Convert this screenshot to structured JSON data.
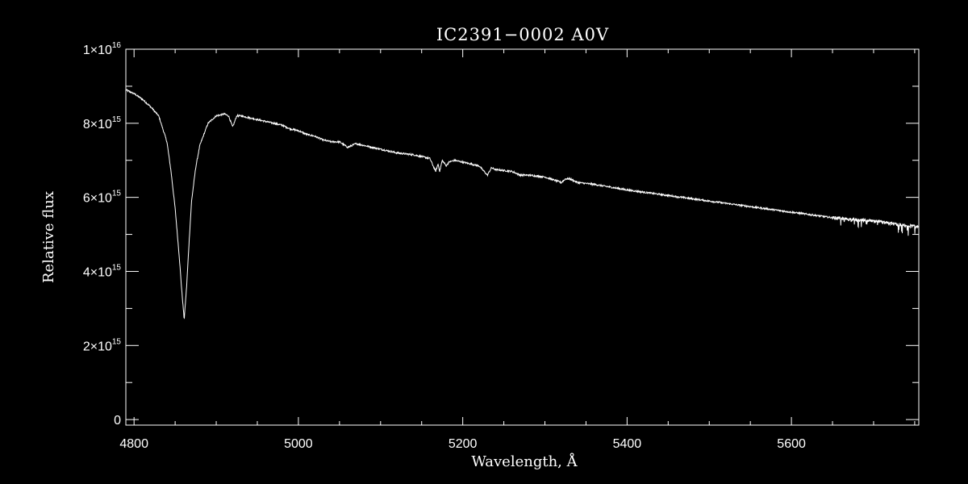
{
  "chart_data": {
    "type": "line",
    "title": "IC2391−0002  A0V",
    "xlabel": "Wavelength, Å",
    "ylabel": "Relative flux",
    "xlim": [
      4790,
      5755
    ],
    "ylim": [
      -150000000000000.0,
      1e+16
    ],
    "xticks": [
      {
        "value": 4800,
        "label": "4800"
      },
      {
        "value": 5000,
        "label": "5000"
      },
      {
        "value": 5200,
        "label": "5200"
      },
      {
        "value": 5400,
        "label": "5400"
      },
      {
        "value": 5600,
        "label": "5600"
      }
    ],
    "yticks": [
      {
        "value": 0,
        "mantissa": "0",
        "exponent": ""
      },
      {
        "value": 2000000000000000.0,
        "mantissa": "2×10",
        "exponent": "15"
      },
      {
        "value": 4000000000000000.0,
        "mantissa": "4×10",
        "exponent": "15"
      },
      {
        "value": 6000000000000000.0,
        "mantissa": "6×10",
        "exponent": "15"
      },
      {
        "value": 8000000000000000.0,
        "mantissa": "8×10",
        "exponent": "15"
      },
      {
        "value": 1e+16,
        "mantissa": "1×10",
        "exponent": "16"
      }
    ],
    "grid": false,
    "line_color": "#ffffff",
    "background": "#000000",
    "series": [
      {
        "x": [
          4790,
          4800,
          4810,
          4820,
          4830,
          4840,
          4845,
          4850,
          4855,
          4858,
          4861,
          4864,
          4867,
          4870,
          4875,
          4880,
          4890,
          4900,
          4910,
          4915,
          4920,
          4925,
          4930,
          4940,
          4950,
          4960,
          4970,
          4980,
          4990,
          5000,
          5010,
          5020,
          5030,
          5040,
          5050,
          5060,
          5070,
          5080,
          5090,
          5100,
          5120,
          5140,
          5160,
          5167,
          5170,
          5172,
          5175,
          5180,
          5183,
          5190,
          5200,
          5220,
          5230,
          5235,
          5240,
          5260,
          5270,
          5280,
          5300,
          5320,
          5325,
          5330,
          5340,
          5360,
          5400,
          5450,
          5500,
          5550,
          5600,
          5650,
          5700,
          5755
        ],
        "y": [
          8900000000000000.0,
          8800000000000000.0,
          8650000000000000.0,
          8450000000000000.0,
          8200000000000000.0,
          7500000000000000.0,
          6700000000000000.0,
          5700000000000000.0,
          4400000000000000.0,
          3500000000000000.0,
          2700000000000000.0,
          3600000000000000.0,
          4800000000000000.0,
          5900000000000000.0,
          6800000000000000.0,
          7400000000000000.0,
          8000000000000000.0,
          8200000000000000.0,
          8250000000000000.0,
          8200000000000000.0,
          7900000000000000.0,
          8200000000000000.0,
          8200000000000000.0,
          8150000000000000.0,
          8100000000000000.0,
          8050000000000000.0,
          8000000000000000.0,
          7950000000000000.0,
          7850000000000000.0,
          7800000000000000.0,
          7700000000000000.0,
          7650000000000000.0,
          7550000000000000.0,
          7500000000000000.0,
          7500000000000000.0,
          7350000000000000.0,
          7450000000000000.0,
          7400000000000000.0,
          7350000000000000.0,
          7300000000000000.0,
          7200000000000000.0,
          7150000000000000.0,
          7050000000000000.0,
          6700000000000000.0,
          6900000000000000.0,
          6700000000000000.0,
          7000000000000000.0,
          6850000000000000.0,
          6950000000000000.0,
          7000000000000000.0,
          6950000000000000.0,
          6850000000000000.0,
          6600000000000000.0,
          6800000000000000.0,
          6750000000000000.0,
          6700000000000000.0,
          6600000000000000.0,
          6600000000000000.0,
          6550000000000000.0,
          6400000000000000.0,
          6500000000000000.0,
          6500000000000000.0,
          6400000000000000.0,
          6350000000000000.0,
          6200000000000000.0,
          6050000000000000.0,
          5900000000000000.0,
          5750000000000000.0,
          5600000000000000.0,
          5450000000000000.0,
          5350000000000000.0,
          5200000000000000.0
        ]
      }
    ]
  }
}
